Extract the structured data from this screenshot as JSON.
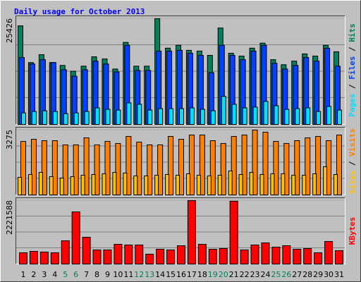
{
  "chart_data": [
    {
      "type": "bar",
      "title": "Daily usage for October 2013",
      "legend_separator": " / ",
      "series": [
        {
          "name": "Pages",
          "color": "#00e0ff",
          "values": [
            2768,
            3114,
            3287,
            3114,
            2595,
            2768,
            3114,
            3979,
            3633,
            3460,
            5190,
            4844,
            3460,
            3806,
            3806,
            3806,
            3979,
            3633,
            3287,
            6747,
            4844,
            3979,
            4152,
            5536,
            4498,
            3633,
            3806,
            3979,
            3114,
            4325,
            3460
          ]
        },
        {
          "name": "Files",
          "color": "#0040ff",
          "values": [
            16089,
            14532,
            15570,
            14878,
            13148,
            11591,
            13148,
            15224,
            14532,
            12629,
            19030,
            12975,
            12975,
            17646,
            17646,
            17819,
            17127,
            16608,
            12456,
            19030,
            16608,
            15570,
            17646,
            19030,
            14705,
            13321,
            14186,
            16089,
            15224,
            18338,
            14013
          ]
        },
        {
          "name": "Hits",
          "color": "#00805c",
          "values": [
            23701,
            14878,
            16781,
            14878,
            14186,
            12802,
            14013,
            16262,
            15743,
            13321,
            19722,
            14013,
            14013,
            25426,
            18338,
            19030,
            17819,
            17646,
            16608,
            23182,
            17127,
            16435,
            18338,
            19549,
            15570,
            14359,
            15224,
            16954,
            16435,
            19030,
            17473
          ]
        }
      ],
      "ylim": [
        0,
        25426
      ],
      "yticks": [
        25426
      ],
      "grid": true
    },
    {
      "type": "bar",
      "legend_separator": " / ",
      "series": [
        {
          "name": "Sites",
          "color": "#ffc000",
          "values": [
            890,
            1032,
            1139,
            926,
            854,
            926,
            997,
            1032,
            1068,
            1139,
            1104,
            961,
            961,
            997,
            1032,
            997,
            1068,
            997,
            961,
            997,
            1210,
            1032,
            1139,
            1032,
            1068,
            1068,
            997,
            997,
            1068,
            1424,
            1032
          ]
        },
        {
          "name": "Visits",
          "color": "#ff8000",
          "values": [
            2706,
            2812,
            2741,
            2741,
            2528,
            2528,
            2884,
            2528,
            2706,
            2599,
            2955,
            2670,
            2528,
            2528,
            2955,
            2812,
            3026,
            3026,
            2741,
            2599,
            2955,
            3026,
            3275,
            3168,
            2706,
            2599,
            2741,
            2884,
            2955,
            2741,
            3026
          ]
        }
      ],
      "ylim": [
        0,
        3275
      ],
      "yticks": [
        3275
      ],
      "grid": true
    },
    {
      "type": "bar",
      "series": [
        {
          "name": "KBytes",
          "color": "#ff0000",
          "values": [
            394944,
            444312,
            419628,
            394944,
            814572,
            1826616,
            937992,
            493680,
            493680,
            691152,
            666468,
            666468,
            345576,
            518364,
            493680,
            641784,
            2221588,
            691152,
            518364,
            543048,
            2200000,
            493680,
            666468,
            740520,
            592416,
            641784,
            518364,
            543048,
            394944,
            789888,
            468996
          ]
        }
      ],
      "ylim": [
        0,
        2221588
      ],
      "yticks": [
        2221588
      ],
      "grid": true,
      "categories": [
        "1",
        "2",
        "3",
        "4",
        "5",
        "6",
        "7",
        "8",
        "9",
        "10",
        "11",
        "12",
        "13",
        "14",
        "15",
        "16",
        "17",
        "18",
        "19",
        "20",
        "21",
        "22",
        "23",
        "24",
        "25",
        "26",
        "27",
        "28",
        "29",
        "30",
        "31"
      ],
      "category_colors": [
        "#000000",
        "#000000",
        "#000000",
        "#000000",
        "#00805c",
        "#00805c",
        "#000000",
        "#000000",
        "#000000",
        "#000000",
        "#000000",
        "#00805c",
        "#00805c",
        "#000000",
        "#000000",
        "#000000",
        "#000000",
        "#000000",
        "#00805c",
        "#00805c",
        "#000000",
        "#000000",
        "#000000",
        "#000000",
        "#00805c",
        "#00805c",
        "#000000",
        "#000000",
        "#000000",
        "#000000",
        "#000000"
      ]
    }
  ]
}
